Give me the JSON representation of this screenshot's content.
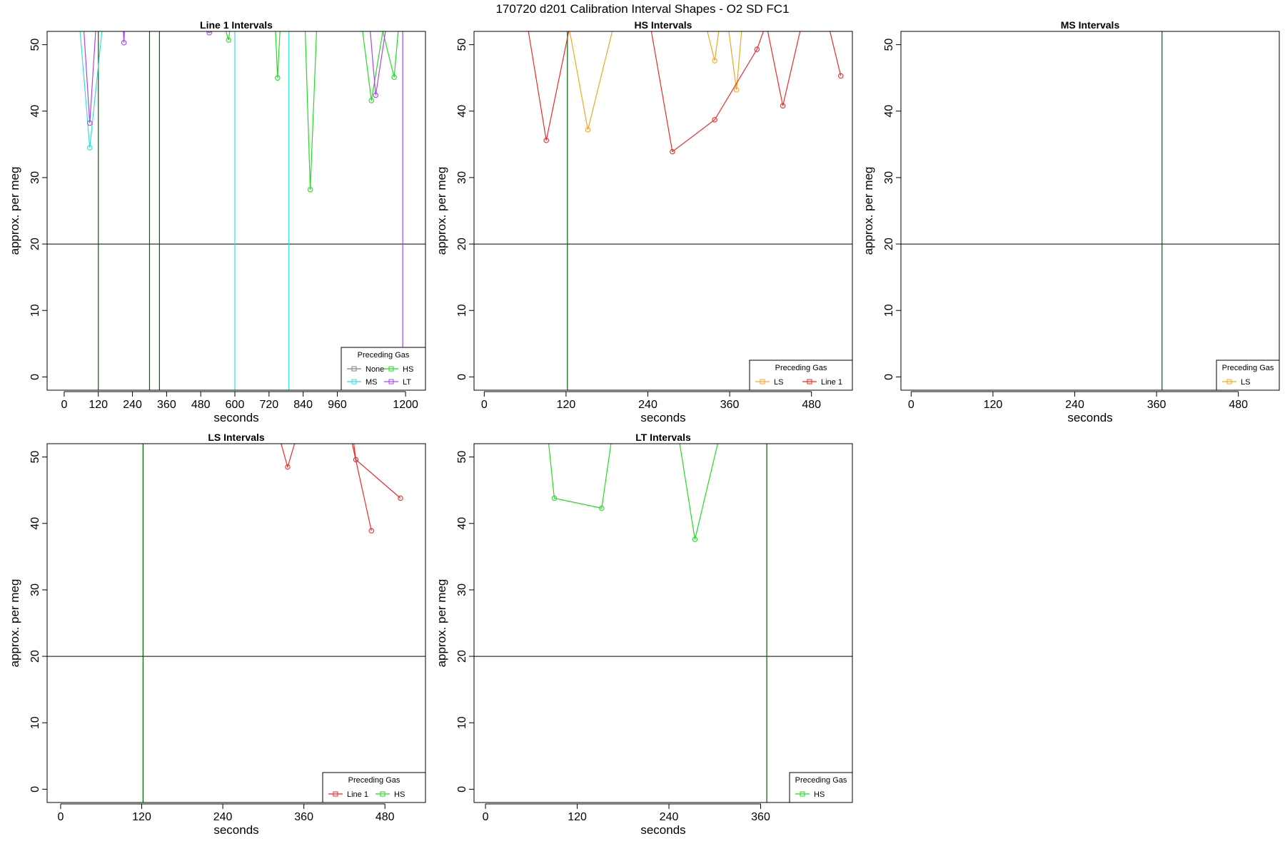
{
  "title": "170720   d201   Calibration Interval Shapes - O2 SD FC1",
  "colors": {
    "None": "#808080",
    "HS": "#22dd22",
    "MS": "#33dddd",
    "LT": "#aa44ee",
    "LS": "#f5a623",
    "Line 1": "#ee2a2a",
    "vline": "#006400",
    "hline": "#000000"
  },
  "chart_data": [
    {
      "type": "line",
      "title": "Line 1 Intervals",
      "xlabel": "seconds",
      "ylabel": "approx. per meg",
      "xlim": [
        -60,
        1270
      ],
      "ylim": [
        -2,
        52
      ],
      "xticks": [
        0,
        120,
        240,
        360,
        480,
        600,
        720,
        840,
        960,
        1200
      ],
      "yticks": [
        0,
        10,
        20,
        30,
        40,
        50
      ],
      "hline": 20,
      "vlines": [
        120,
        300,
        335
      ],
      "legend": {
        "title": "Preceding Gas",
        "position": "bottom-right",
        "entries": [
          "None",
          "HS",
          "MS",
          "LT"
        ]
      },
      "series": [
        {
          "name": "MS",
          "points": [
            [
              50,
              55
            ],
            [
              90,
              34.5
            ],
            [
              140,
              55
            ]
          ],
          "markers": [
            [
              90,
              34.5
            ]
          ]
        },
        {
          "name": "LT",
          "points": [
            [
              65,
              55
            ],
            [
              90,
              38.2
            ],
            [
              115,
              55
            ]
          ],
          "markers": [
            [
              90,
              38.2
            ]
          ]
        },
        {
          "name": "LT",
          "points": [
            [
              205,
              55
            ],
            [
              210,
              50.3
            ],
            [
              215,
              55
            ]
          ],
          "markers": [
            [
              210,
              50.3
            ]
          ]
        },
        {
          "name": "LT",
          "points": [
            [
              480,
              52.5
            ],
            [
              510,
              51.8
            ],
            [
              540,
              52.5
            ]
          ],
          "markers": [
            [
              510,
              51.8
            ]
          ]
        },
        {
          "name": "HS",
          "points": [
            [
              555,
              55
            ],
            [
              570,
              51.8
            ],
            [
              578,
              50.7
            ],
            [
              590,
              55
            ]
          ],
          "markers": [
            [
              578,
              50.7
            ]
          ]
        },
        {
          "name": "MS",
          "points": [
            [
              600,
              55
            ],
            [
              600,
              -2
            ]
          ],
          "markers": []
        },
        {
          "name": "HS",
          "points": [
            [
              740,
              55
            ],
            [
              750,
              45
            ],
            [
              762,
              55
            ]
          ],
          "markers": [
            [
              750,
              45
            ]
          ]
        },
        {
          "name": "MS",
          "points": [
            [
              790,
              55
            ],
            [
              790,
              -2
            ]
          ],
          "markers": []
        },
        {
          "name": "HS",
          "points": [
            [
              845,
              55
            ],
            [
              865,
              28.2
            ],
            [
              890,
              55
            ]
          ],
          "markers": [
            [
              865,
              28.2
            ]
          ]
        },
        {
          "name": "HS",
          "points": [
            [
              1040,
              55
            ],
            [
              1080,
              41.6
            ],
            [
              1120,
              52
            ],
            [
              1160,
              45.1
            ],
            [
              1180,
              55
            ]
          ],
          "markers": [
            [
              1080,
              41.6
            ],
            [
              1160,
              45.1
            ]
          ]
        },
        {
          "name": "LT",
          "points": [
            [
              1070,
              55
            ],
            [
              1095,
              42.4
            ],
            [
              1140,
              55
            ]
          ],
          "markers": [
            [
              1095,
              42.4
            ]
          ]
        },
        {
          "name": "LT",
          "points": [
            [
              1190,
              55
            ],
            [
              1190,
              -2
            ]
          ],
          "markers": []
        }
      ]
    },
    {
      "type": "line",
      "title": "HS Intervals",
      "xlabel": "seconds",
      "ylabel": "approx. per meg",
      "xlim": [
        -15,
        540
      ],
      "ylim": [
        -2,
        52
      ],
      "xticks": [
        0,
        120,
        240,
        360,
        480
      ],
      "yticks": [
        0,
        10,
        20,
        30,
        40,
        50
      ],
      "hline": 20,
      "vlines": [
        122
      ],
      "legend": {
        "title": "Preceding Gas",
        "position": "bottom-right",
        "entries": [
          "LS",
          "Line 1"
        ]
      },
      "series": [
        {
          "name": "LS",
          "points": [
            [
              120,
              55
            ],
            [
              152,
              37.2
            ],
            [
              195,
              55
            ]
          ],
          "markers": [
            [
              152,
              37.2
            ]
          ]
        },
        {
          "name": "LS",
          "points": [
            [
              320,
              55
            ],
            [
              338,
              47.6
            ],
            [
              348,
              55
            ]
          ],
          "markers": [
            [
              338,
              47.6
            ]
          ]
        },
        {
          "name": "LS",
          "points": [
            [
              355,
              55
            ],
            [
              370,
              43.2
            ],
            [
              380,
              55
            ]
          ],
          "markers": [
            [
              370,
              43.2
            ]
          ]
        },
        {
          "name": "Line 1",
          "points": [
            [
              60,
              55
            ],
            [
              91,
              35.6
            ],
            [
              130,
              55
            ]
          ],
          "markers": [
            [
              91,
              35.6
            ]
          ]
        },
        {
          "name": "Line 1",
          "points": [
            [
              240,
              55
            ],
            [
              276,
              33.9
            ],
            [
              338,
              38.7
            ],
            [
              400,
              49.3
            ],
            [
              420,
              55
            ]
          ],
          "markers": [
            [
              276,
              33.9
            ],
            [
              338,
              38.7
            ],
            [
              400,
              49.3
            ]
          ]
        },
        {
          "name": "Line 1",
          "points": [
            [
              410,
              55
            ],
            [
              438,
              40.8
            ],
            [
              470,
              55
            ]
          ],
          "markers": [
            [
              438,
              40.8
            ]
          ]
        },
        {
          "name": "Line 1",
          "points": [
            [
              500,
              55
            ],
            [
              523,
              45.3
            ]
          ],
          "markers": [
            [
              523,
              45.3
            ]
          ]
        }
      ]
    },
    {
      "type": "line",
      "title": "MS Intervals",
      "xlabel": "seconds",
      "ylabel": "approx. per meg",
      "xlim": [
        -15,
        540
      ],
      "ylim": [
        -2,
        52
      ],
      "xticks": [
        0,
        120,
        240,
        360,
        480
      ],
      "yticks": [
        0,
        10,
        20,
        30,
        40,
        50
      ],
      "hline": 20,
      "vlines": [
        368
      ],
      "legend": {
        "title": "Preceding Gas",
        "position": "bottom-right",
        "entries": [
          "LS"
        ]
      },
      "series": []
    },
    {
      "type": "line",
      "title": "LS Intervals",
      "xlabel": "seconds",
      "ylabel": "approx. per meg",
      "xlim": [
        -20,
        540
      ],
      "ylim": [
        -2,
        52
      ],
      "xticks": [
        0,
        120,
        240,
        360,
        480
      ],
      "yticks": [
        0,
        10,
        20,
        30,
        40,
        50
      ],
      "hline": 20,
      "vlines": [
        122
      ],
      "legend": {
        "title": "Preceding Gas",
        "position": "bottom-right",
        "entries": [
          "Line 1",
          "HS"
        ]
      },
      "series": [
        {
          "name": "Line 1",
          "points": [
            [
              318,
              55
            ],
            [
              336,
              48.5
            ],
            [
              355,
              55
            ]
          ],
          "markers": [
            [
              336,
              48.5
            ]
          ]
        },
        {
          "name": "Line 1",
          "points": [
            [
              430,
              55
            ],
            [
              437,
              49.6
            ],
            [
              503,
              43.8
            ]
          ],
          "markers": [
            [
              437,
              49.6
            ],
            [
              503,
              43.8
            ]
          ]
        },
        {
          "name": "Line 1",
          "points": [
            [
              425,
              55
            ],
            [
              460,
              38.9
            ]
          ],
          "markers": [
            [
              460,
              38.9
            ]
          ]
        }
      ]
    },
    {
      "type": "line",
      "title": "LT Intervals",
      "xlabel": "seconds",
      "ylabel": "approx. per meg",
      "xlim": [
        -15,
        480
      ],
      "ylim": [
        -2,
        52
      ],
      "xticks": [
        0,
        120,
        240,
        360
      ],
      "yticks": [
        0,
        10,
        20,
        30,
        40,
        50
      ],
      "hline": 20,
      "vlines": [
        368
      ],
      "legend": {
        "title": "Preceding Gas",
        "position": "bottom-right",
        "entries": [
          "HS"
        ]
      },
      "series": [
        {
          "name": "HS",
          "points": [
            [
              80,
              55
            ],
            [
              90,
              43.8
            ],
            [
              152,
              42.3
            ],
            [
              168,
              55
            ]
          ],
          "markers": [
            [
              90,
              43.8
            ],
            [
              152,
              42.3
            ]
          ]
        },
        {
          "name": "HS",
          "points": [
            [
              250,
              55
            ],
            [
              274,
              37.6
            ],
            [
              310,
              55
            ]
          ],
          "markers": [
            [
              274,
              37.6
            ]
          ]
        }
      ]
    }
  ]
}
